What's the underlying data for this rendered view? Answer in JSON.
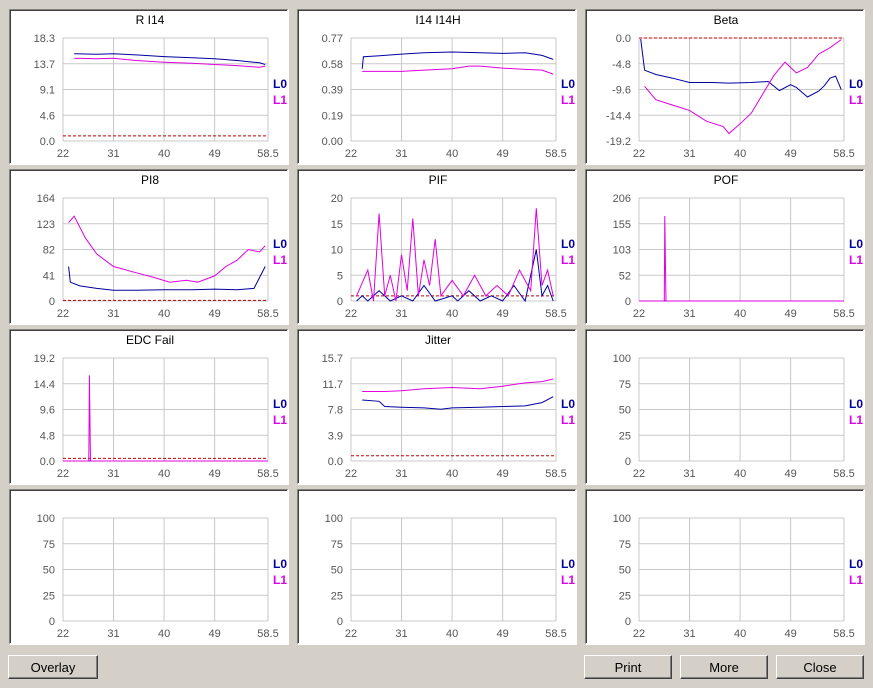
{
  "colors": {
    "L0": "#0000a0",
    "L1": "#e000e0",
    "threshold": "#c00000",
    "grid": "#c8c8c8"
  },
  "legend": [
    "L0",
    "L1"
  ],
  "buttons": {
    "overlay": "Overlay",
    "print": "Print",
    "more": "More",
    "close": "Close"
  },
  "chart_data": [
    {
      "type": "line",
      "title": "R I14",
      "x_ticks": [
        "22",
        "31",
        "40",
        "49",
        "58.5"
      ],
      "xlim": [
        22,
        58.5
      ],
      "y_ticks": [
        "18.3",
        "13.7",
        "9.1",
        "4.6",
        "0.0"
      ],
      "ylim": [
        0,
        18.3
      ],
      "threshold": 0.9,
      "series": [
        {
          "name": "L0",
          "x": [
            24,
            28,
            31,
            35,
            40,
            45,
            49,
            53,
            57,
            58
          ],
          "y": [
            15.5,
            15.4,
            15.5,
            15.3,
            15.0,
            14.8,
            14.6,
            14.3,
            13.9,
            13.6
          ]
        },
        {
          "name": "L1",
          "x": [
            24,
            28,
            31,
            35,
            40,
            45,
            49,
            53,
            57,
            58
          ],
          "y": [
            14.7,
            14.6,
            14.7,
            14.3,
            14.0,
            13.8,
            13.6,
            13.4,
            13.1,
            13.3
          ]
        }
      ]
    },
    {
      "type": "line",
      "title": "I14 I14H",
      "x_ticks": [
        "22",
        "31",
        "40",
        "49",
        "58.5"
      ],
      "xlim": [
        22,
        58.5
      ],
      "y_ticks": [
        "0.77",
        "0.58",
        "0.39",
        "0.19",
        "0.00"
      ],
      "ylim": [
        0,
        0.77
      ],
      "series": [
        {
          "name": "L0",
          "x": [
            24,
            24.2,
            28,
            31,
            35,
            40,
            45,
            49,
            53,
            56,
            58
          ],
          "y": [
            0.54,
            0.63,
            0.64,
            0.65,
            0.66,
            0.665,
            0.66,
            0.655,
            0.66,
            0.64,
            0.61
          ]
        },
        {
          "name": "L1",
          "x": [
            24,
            28,
            31,
            35,
            40,
            43,
            45,
            49,
            53,
            56,
            58
          ],
          "y": [
            0.52,
            0.52,
            0.52,
            0.53,
            0.54,
            0.56,
            0.56,
            0.545,
            0.535,
            0.53,
            0.5
          ]
        }
      ]
    },
    {
      "type": "line",
      "title": "Beta",
      "x_ticks": [
        "22",
        "31",
        "40",
        "49",
        "58.5"
      ],
      "xlim": [
        22,
        58.5
      ],
      "y_ticks": [
        "0.0",
        "-4.8",
        "-9.6",
        "-14.4",
        "-19.2"
      ],
      "ylim": [
        -19.2,
        0
      ],
      "threshold": 0.0,
      "series": [
        {
          "name": "L0",
          "x": [
            22.3,
            23,
            25,
            28,
            31,
            35,
            38,
            42,
            45,
            47,
            49,
            50,
            52,
            54,
            55,
            56,
            57,
            58
          ],
          "y": [
            -0.2,
            -6,
            -6.8,
            -7.5,
            -8.3,
            -8.3,
            -8.4,
            -8.3,
            -8.1,
            -9.8,
            -8.7,
            -9.2,
            -11,
            -9.9,
            -8.9,
            -7.5,
            -7.1,
            -9.6
          ]
        },
        {
          "name": "L1",
          "x": [
            23,
            25,
            28,
            31,
            34,
            37,
            38,
            40,
            42,
            44,
            46,
            48,
            50,
            52,
            54,
            56,
            58
          ],
          "y": [
            -9.0,
            -11.5,
            -12.5,
            -13.5,
            -15.5,
            -16.5,
            -17.8,
            -16.0,
            -14.0,
            -10.5,
            -7.0,
            -4.5,
            -6.5,
            -5.5,
            -3.0,
            -1.8,
            -0.3
          ]
        }
      ]
    },
    {
      "type": "line",
      "title": "PI8",
      "x_ticks": [
        "22",
        "31",
        "40",
        "49",
        "58.5"
      ],
      "xlim": [
        22,
        58.5
      ],
      "y_ticks": [
        "164",
        "123",
        "82",
        "41",
        "0"
      ],
      "ylim": [
        0,
        164
      ],
      "threshold": 1,
      "series": [
        {
          "name": "L0",
          "x": [
            23,
            23.3,
            25,
            28,
            31,
            35,
            40,
            45,
            49,
            53,
            56,
            58
          ],
          "y": [
            55,
            30,
            24,
            20,
            17,
            17,
            18,
            18,
            19,
            18,
            20,
            55
          ]
        },
        {
          "name": "L1",
          "x": [
            23,
            24,
            26,
            28,
            31,
            35,
            38,
            41,
            44,
            46,
            49,
            51,
            53,
            55,
            57,
            58
          ],
          "y": [
            125,
            135,
            100,
            75,
            55,
            45,
            38,
            30,
            33,
            30,
            40,
            55,
            65,
            82,
            78,
            88
          ]
        }
      ]
    },
    {
      "type": "line",
      "title": "PIF",
      "x_ticks": [
        "22",
        "31",
        "40",
        "49",
        "58.5"
      ],
      "xlim": [
        22,
        58.5
      ],
      "y_ticks": [
        "20",
        "15",
        "10",
        "5",
        "0"
      ],
      "ylim": [
        0,
        20
      ],
      "threshold": 1,
      "series": [
        {
          "name": "L0",
          "x": [
            23,
            24,
            25,
            27,
            29,
            31,
            33,
            35,
            37,
            40,
            41,
            43,
            45,
            47,
            49,
            51,
            53,
            55,
            56,
            57,
            58
          ],
          "y": [
            0,
            1,
            0,
            2,
            0,
            1,
            0,
            3,
            0,
            1,
            0,
            2,
            0,
            1,
            0,
            3,
            0,
            10,
            1,
            3,
            0
          ]
        },
        {
          "name": "L1",
          "x": [
            23,
            25,
            26,
            27,
            28,
            29,
            30,
            31,
            32,
            33,
            34,
            35,
            36,
            37,
            38,
            40,
            42,
            44,
            46,
            48,
            50,
            52,
            54,
            55,
            56,
            57,
            58
          ],
          "y": [
            1,
            6,
            0,
            17,
            1,
            5,
            0,
            9,
            2,
            16,
            1,
            8,
            3,
            12,
            1,
            4,
            1,
            5,
            1,
            3,
            1,
            6,
            2,
            18,
            3,
            6,
            1
          ]
        }
      ]
    },
    {
      "type": "line",
      "title": "POF",
      "x_ticks": [
        "22",
        "31",
        "40",
        "49",
        "58.5"
      ],
      "xlim": [
        22,
        58.5
      ],
      "y_ticks": [
        "206",
        "155",
        "103",
        "52",
        "0"
      ],
      "ylim": [
        0,
        206
      ],
      "threshold": 0,
      "series": [
        {
          "name": "L0",
          "x": [
            22,
            58.5
          ],
          "y": [
            0,
            0
          ]
        },
        {
          "name": "L1",
          "x": [
            22,
            26.5,
            26.6,
            26.7,
            26.8,
            58.5
          ],
          "y": [
            0,
            0,
            170,
            80,
            0,
            0
          ]
        }
      ]
    },
    {
      "type": "line",
      "title": "EDC Fail",
      "x_ticks": [
        "22",
        "31",
        "40",
        "49",
        "58.5"
      ],
      "xlim": [
        22,
        58.5
      ],
      "y_ticks": [
        "19.2",
        "14.4",
        "9.6",
        "4.8",
        "0.0"
      ],
      "ylim": [
        0,
        19.2
      ],
      "threshold": 0.5,
      "series": [
        {
          "name": "L0",
          "x": [
            22,
            58.5
          ],
          "y": [
            0,
            0
          ]
        },
        {
          "name": "L1",
          "x": [
            22,
            26.6,
            26.7,
            26.8,
            26.9,
            58.5
          ],
          "y": [
            0,
            0,
            16,
            7,
            0,
            0
          ]
        }
      ]
    },
    {
      "type": "line",
      "title": "Jitter",
      "x_ticks": [
        "22",
        "31",
        "40",
        "49",
        "58.5"
      ],
      "xlim": [
        22,
        58.5
      ],
      "y_ticks": [
        "15.7",
        "11.7",
        "7.8",
        "3.9",
        "0.0"
      ],
      "ylim": [
        0,
        15.7
      ],
      "threshold": 0.8,
      "series": [
        {
          "name": "L0",
          "x": [
            24,
            27,
            28,
            31,
            35,
            38,
            40,
            45,
            49,
            53,
            56,
            58
          ],
          "y": [
            9.3,
            9.1,
            8.3,
            8.2,
            8.1,
            7.9,
            8.1,
            8.2,
            8.3,
            8.4,
            8.9,
            9.8
          ]
        },
        {
          "name": "L1",
          "x": [
            24,
            28,
            31,
            35,
            40,
            45,
            49,
            53,
            56,
            58
          ],
          "y": [
            10.6,
            10.6,
            10.7,
            11.0,
            11.2,
            11.0,
            11.4,
            11.9,
            12.1,
            12.5
          ]
        }
      ]
    },
    {
      "type": "line",
      "title": "",
      "x_ticks": [
        "22",
        "31",
        "40",
        "49",
        "58.5"
      ],
      "xlim": [
        22,
        58.5
      ],
      "y_ticks": [
        "100",
        "75",
        "50",
        "25",
        "0"
      ],
      "ylim": [
        0,
        100
      ],
      "series": []
    },
    {
      "type": "line",
      "title": "",
      "x_ticks": [
        "22",
        "31",
        "40",
        "49",
        "58.5"
      ],
      "xlim": [
        22,
        58.5
      ],
      "y_ticks": [
        "100",
        "75",
        "50",
        "25",
        "0"
      ],
      "ylim": [
        0,
        100
      ],
      "series": []
    },
    {
      "type": "line",
      "title": "",
      "x_ticks": [
        "22",
        "31",
        "40",
        "49",
        "58.5"
      ],
      "xlim": [
        22,
        58.5
      ],
      "y_ticks": [
        "100",
        "75",
        "50",
        "25",
        "0"
      ],
      "ylim": [
        0,
        100
      ],
      "series": []
    },
    {
      "type": "line",
      "title": "",
      "x_ticks": [
        "22",
        "31",
        "40",
        "49",
        "58.5"
      ],
      "xlim": [
        22,
        58.5
      ],
      "y_ticks": [
        "100",
        "75",
        "50",
        "25",
        "0"
      ],
      "ylim": [
        0,
        100
      ],
      "series": []
    }
  ]
}
